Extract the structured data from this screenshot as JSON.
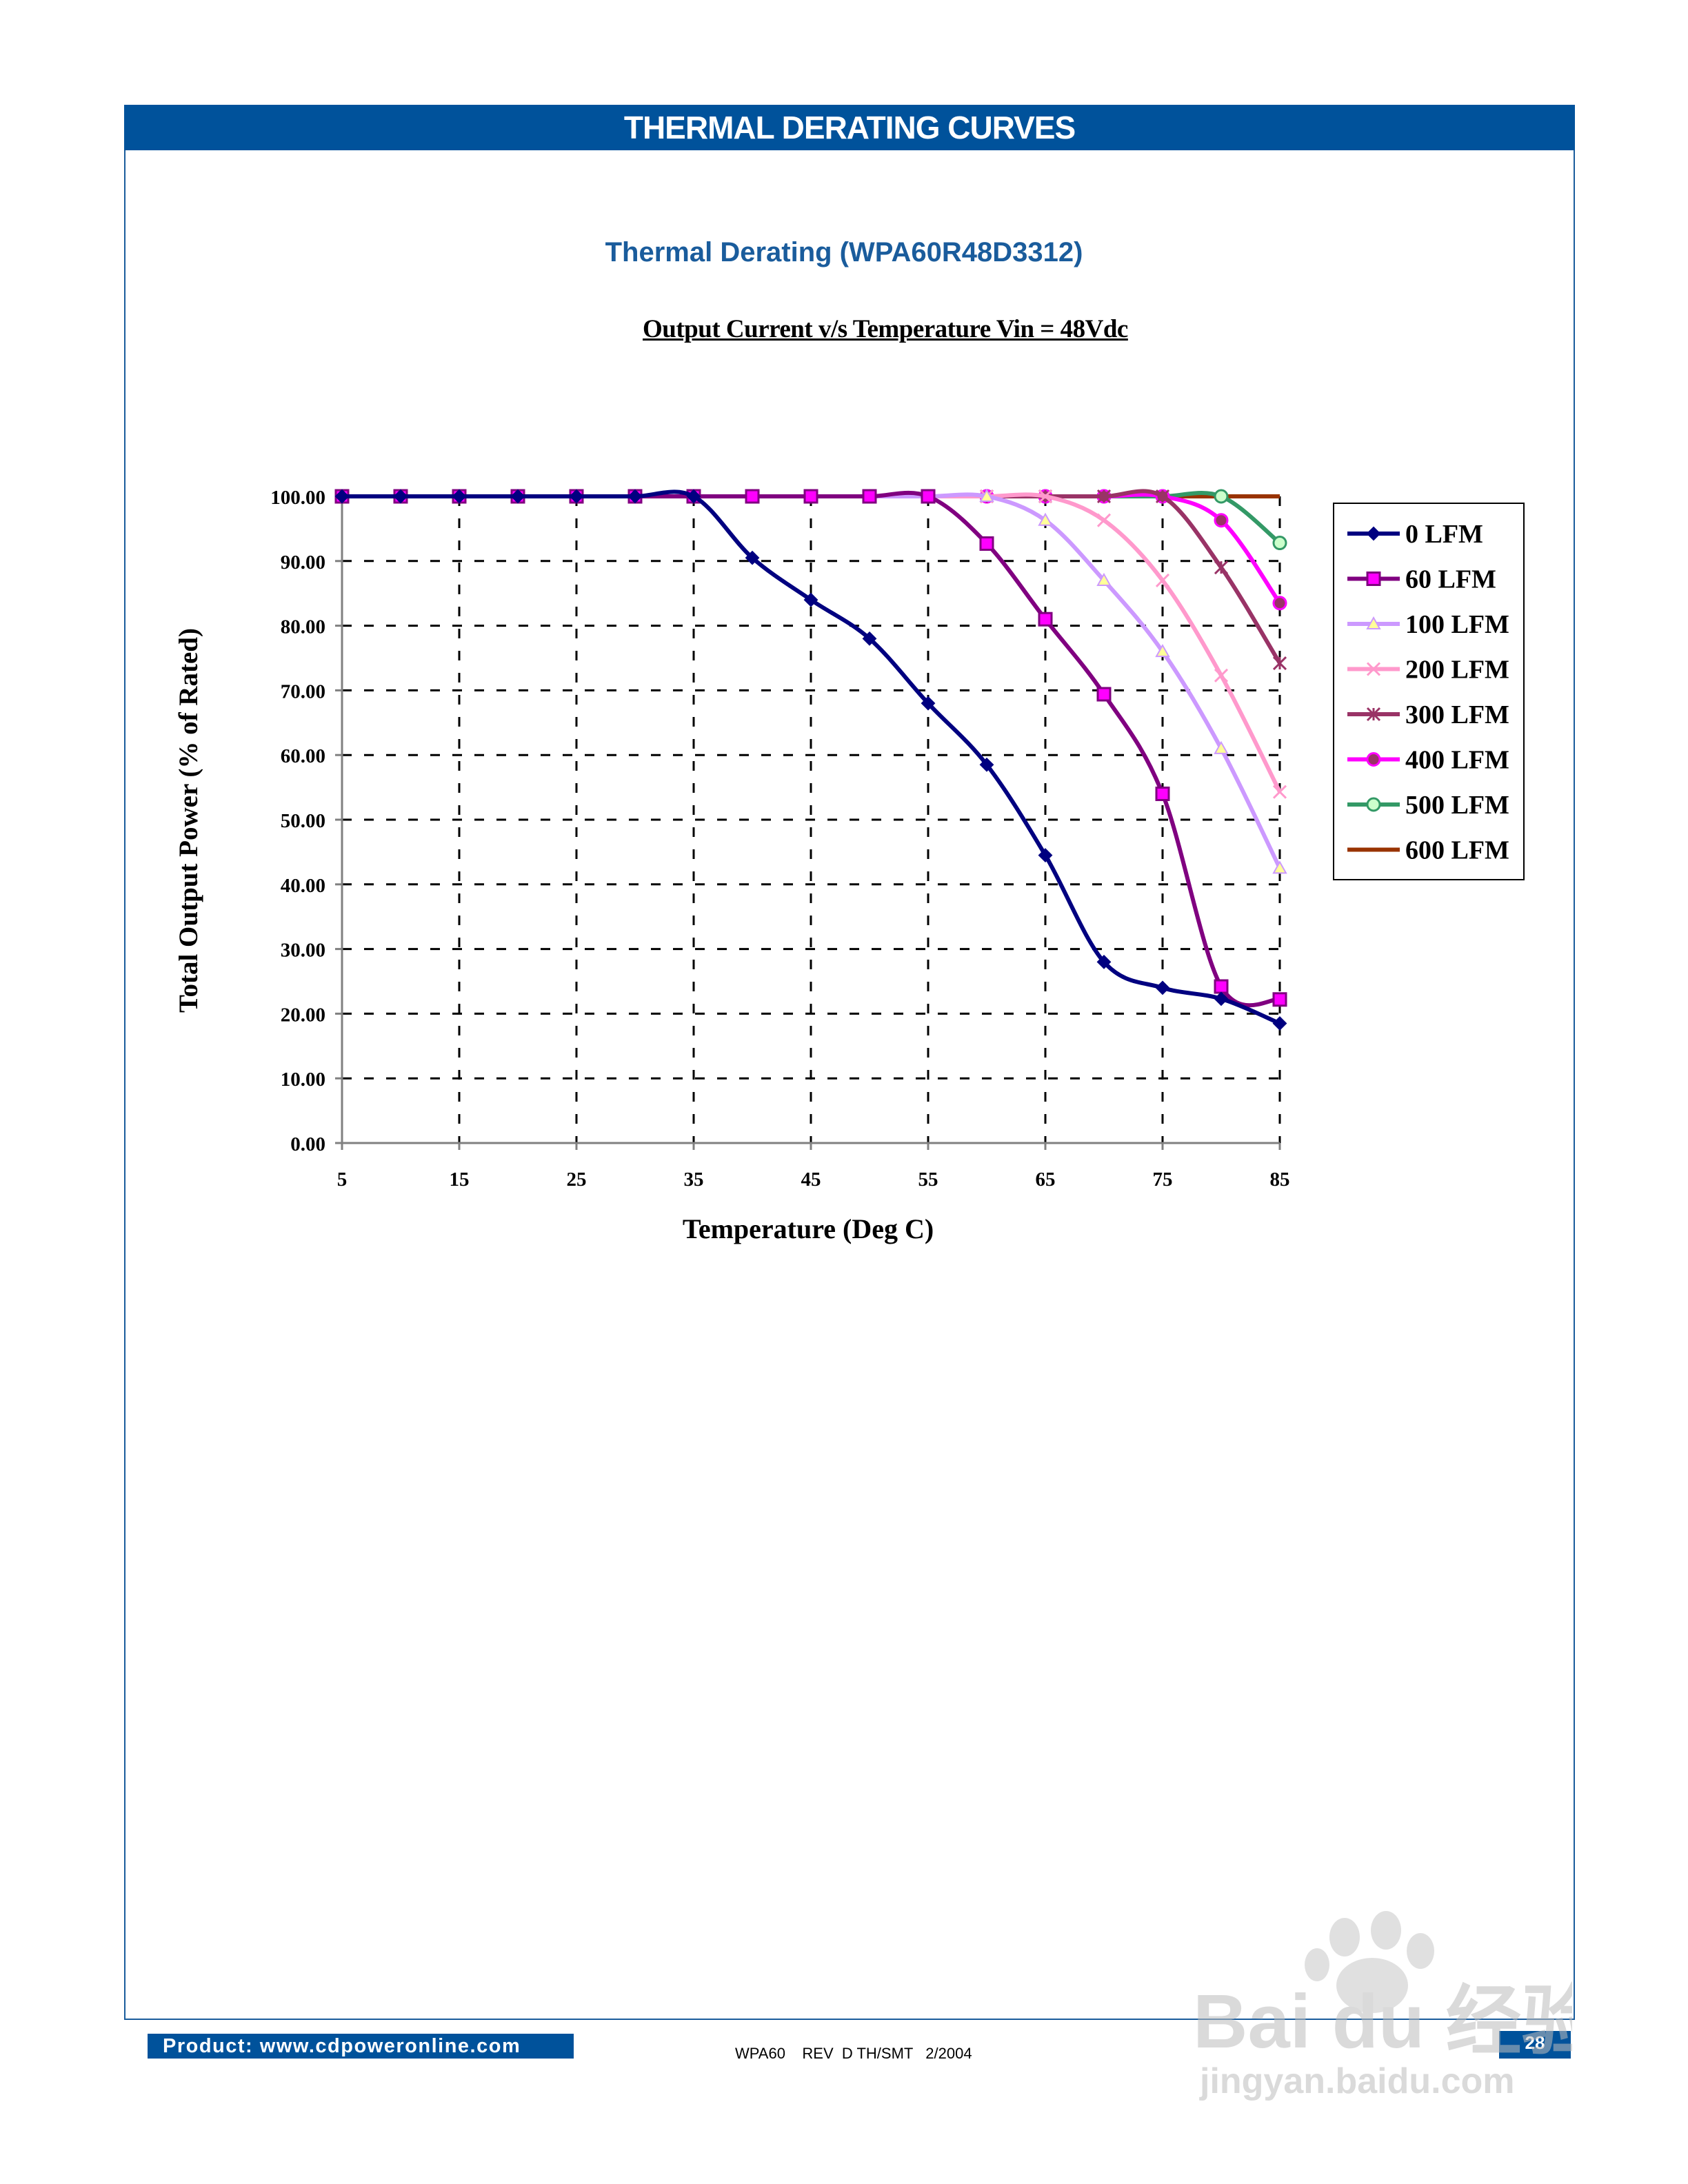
{
  "header": {
    "title": "THERMAL DERATING CURVES"
  },
  "chart_title": "Thermal Derating (WPA60R48D3312)",
  "chart_data": {
    "type": "line",
    "title": "Output Current v/s Temperature Vin = 48Vdc",
    "xlabel": "Temperature (Deg C)",
    "ylabel": "Total Output Power (% of Rated)",
    "xlim": [
      5,
      85
    ],
    "ylim": [
      0,
      100
    ],
    "x": [
      5,
      10,
      15,
      20,
      25,
      30,
      35,
      40,
      45,
      50,
      55,
      60,
      65,
      70,
      75,
      80,
      85
    ],
    "x_ticks": [
      "5",
      "15",
      "25",
      "35",
      "45",
      "55",
      "65",
      "75",
      "85"
    ],
    "y_ticks": [
      "0.00",
      "10.00",
      "20.00",
      "30.00",
      "40.00",
      "50.00",
      "60.00",
      "70.00",
      "80.00",
      "90.00",
      "100.00"
    ],
    "grid": true,
    "legend_position": "right",
    "series": [
      {
        "name": "0 LFM",
        "color": "#000080",
        "marker": "diamond",
        "values": [
          100,
          100,
          100,
          100,
          100,
          100,
          100,
          90.5,
          84,
          78,
          68,
          58.5,
          44.5,
          28,
          24,
          22.3,
          18.5
        ]
      },
      {
        "name": "60 LFM",
        "color": "#800080",
        "marker": "square",
        "values": [
          100,
          100,
          100,
          100,
          100,
          100,
          100,
          100,
          100,
          100,
          100,
          92.7,
          81,
          69.4,
          54,
          24.2,
          22.2
        ]
      },
      {
        "name": "100 LFM",
        "color": "#cc99ff",
        "marker": "triangle",
        "values": [
          100,
          100,
          100,
          100,
          100,
          100,
          100,
          100,
          100,
          100,
          100,
          100,
          96.3,
          87,
          76,
          61,
          42.5
        ]
      },
      {
        "name": "200 LFM",
        "color": "#ff99cc",
        "marker": "x",
        "values": [
          100,
          100,
          100,
          100,
          100,
          100,
          100,
          100,
          100,
          100,
          100,
          100,
          100,
          96.3,
          87,
          72.3,
          54.3
        ]
      },
      {
        "name": "300 LFM",
        "color": "#993366",
        "marker": "star",
        "values": [
          100,
          100,
          100,
          100,
          100,
          100,
          100,
          100,
          100,
          100,
          100,
          100,
          100,
          100,
          100,
          89,
          74.2
        ]
      },
      {
        "name": "400 LFM",
        "color": "#ff00ff",
        "marker": "circle",
        "values": [
          100,
          100,
          100,
          100,
          100,
          100,
          100,
          100,
          100,
          100,
          100,
          100,
          100,
          100,
          100,
          96.3,
          83.5
        ]
      },
      {
        "name": "500 LFM",
        "color": "#339966",
        "marker": "open-circle",
        "values": [
          100,
          100,
          100,
          100,
          100,
          100,
          100,
          100,
          100,
          100,
          100,
          100,
          100,
          100,
          100,
          100,
          92.8
        ]
      },
      {
        "name": "600 LFM",
        "color": "#993300",
        "marker": "none",
        "values": [
          100,
          100,
          100,
          100,
          100,
          100,
          100,
          100,
          100,
          100,
          100,
          100,
          100,
          100,
          100,
          100,
          100
        ]
      }
    ]
  },
  "footer": {
    "product": "Product:  www.cdpoweronline.com",
    "doc_ref": "WPA60    REV  D TH/SMT   2/2004",
    "page": "28"
  },
  "watermark": {
    "brand": "Bai du 经验",
    "url": "jingyan.baidu.com"
  }
}
